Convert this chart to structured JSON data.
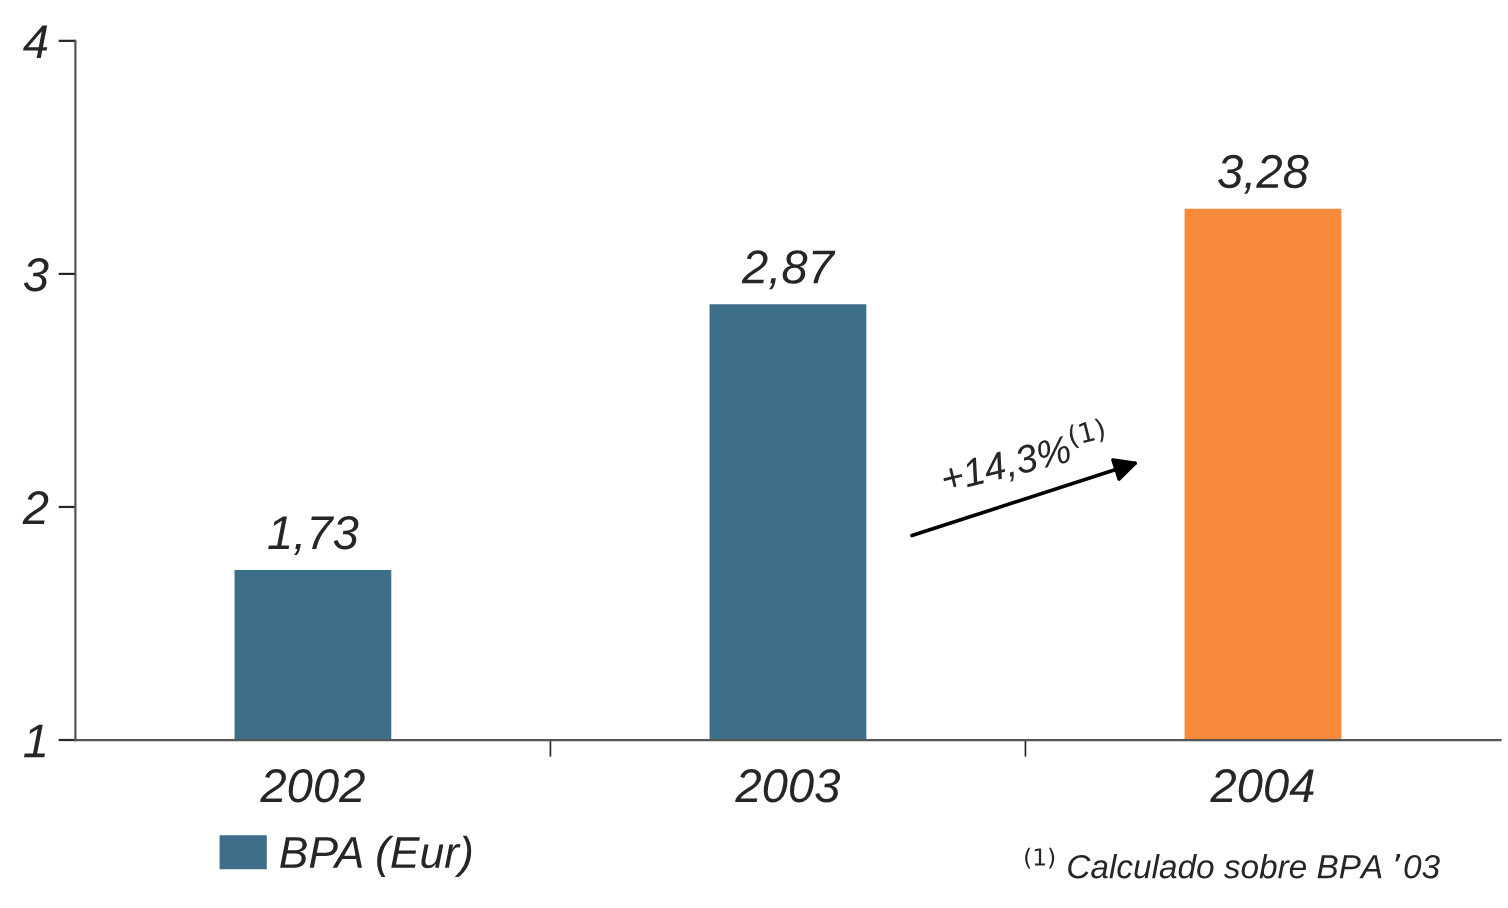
{
  "chart_data": {
    "type": "bar",
    "categories": [
      "2002",
      "2003",
      "2004"
    ],
    "series": [
      {
        "name": "BPA (Eur)",
        "color": "#3d6e8a",
        "colors": [
          "#3d6e8a",
          "#3d6e8a",
          "#f7893a"
        ],
        "values": [
          1.73,
          2.87,
          3.28
        ],
        "value_labels": [
          "1,73",
          "2,87",
          "3,28"
        ]
      }
    ],
    "ylim": [
      1,
      4
    ],
    "yticks": [
      1,
      2,
      3,
      4
    ],
    "grid": false,
    "legend": "bottom left",
    "annotations": [
      "+14,3%$^{(1)}$",
      "$^{(1)}$ Calculado sobre BPA ’03"
    ]
  }
}
